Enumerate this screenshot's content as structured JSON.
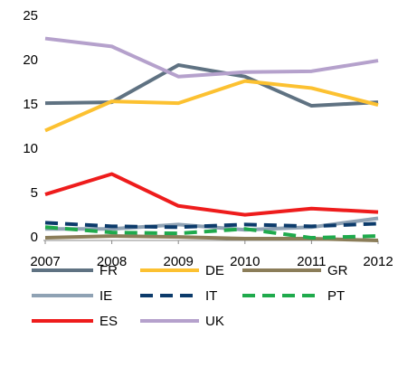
{
  "chart_data": {
    "type": "line",
    "x": [
      2007,
      2008,
      2009,
      2010,
      2011,
      2012
    ],
    "xlim": [
      2007,
      2012
    ],
    "xticks": [
      2007,
      2008,
      2009,
      2010,
      2011,
      2012
    ],
    "ylim": [
      0,
      25
    ],
    "yticks": [
      0,
      5,
      10,
      15,
      20,
      25
    ],
    "grid": false,
    "legend": "bottom",
    "series": [
      {
        "name": "FR",
        "color": "#5f7282",
        "dashed": false,
        "values": [
          15.5,
          15.6,
          19.8,
          18.5,
          15.2,
          15.6
        ]
      },
      {
        "name": "DE",
        "color": "#fcc131",
        "dashed": false,
        "values": [
          12.4,
          15.7,
          15.5,
          18.0,
          17.2,
          15.3
        ]
      },
      {
        "name": "GR",
        "color": "#8b7d59",
        "dashed": false,
        "values": [
          0.3,
          0.5,
          0.4,
          0.2,
          0.2,
          0.0
        ]
      },
      {
        "name": "IE",
        "color": "#8fa2b4",
        "dashed": false,
        "values": [
          1.3,
          1.3,
          1.8,
          1.2,
          1.5,
          2.5
        ]
      },
      {
        "name": "IT",
        "color": "#0c3b6b",
        "dashed": true,
        "values": [
          2.0,
          1.6,
          1.5,
          1.8,
          1.6,
          1.9
        ]
      },
      {
        "name": "PT",
        "color": "#1faa4c",
        "dashed": true,
        "values": [
          1.5,
          0.9,
          0.8,
          1.3,
          0.3,
          0.5
        ]
      },
      {
        "name": "ES",
        "color": "#ee1c1c",
        "dashed": false,
        "values": [
          5.2,
          7.5,
          3.9,
          2.9,
          3.6,
          3.2
        ]
      },
      {
        "name": "UK",
        "color": "#b5a1cc",
        "dashed": false,
        "values": [
          22.8,
          21.9,
          18.5,
          19.0,
          19.1,
          20.3
        ]
      }
    ]
  }
}
